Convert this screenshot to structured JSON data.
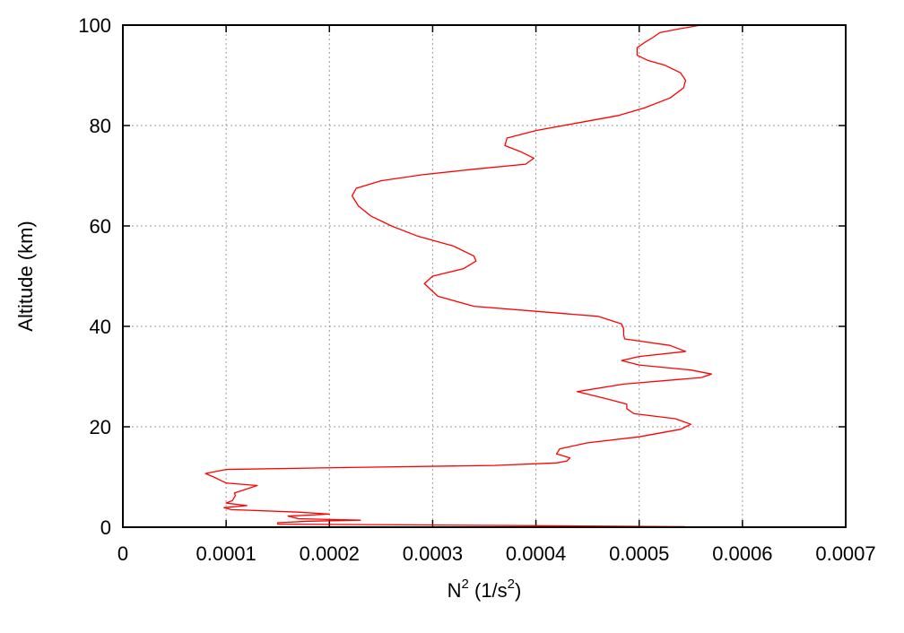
{
  "chart_data": {
    "type": "line",
    "xlabel_base": "N",
    "xlabel_exp": "2",
    "xlabel_mid": " (1/s",
    "xlabel_unit_exp": "2",
    "xlabel_end": ")",
    "ylabel": "Altitude (km)",
    "xlim": [
      0,
      0.0007
    ],
    "ylim": [
      0,
      100
    ],
    "x_ticks": [
      0,
      0.0001,
      0.0002,
      0.0003,
      0.0004,
      0.0005,
      0.0006,
      0.0007
    ],
    "x_tick_labels": [
      "0",
      "0.0001",
      "0.0002",
      "0.0003",
      "0.0004",
      "0.0005",
      "0.0006",
      "0.0007"
    ],
    "y_ticks": [
      0,
      20,
      40,
      60,
      80,
      100
    ],
    "y_tick_labels": [
      "0",
      "20",
      "40",
      "60",
      "80",
      "100"
    ],
    "grid": true,
    "series": [
      {
        "color": "#ff0000",
        "points": [
          [
            0.000545,
            0.1
          ],
          [
            0.0004,
            0.3
          ],
          [
            0.00015,
            0.6
          ],
          [
            0.00015,
            0.9
          ],
          [
            0.00018,
            1.2
          ],
          [
            0.00023,
            1.4
          ],
          [
            0.00017,
            1.7
          ],
          [
            0.00016,
            2.2
          ],
          [
            0.0002,
            2.6
          ],
          [
            0.00017,
            3.0
          ],
          [
            0.000105,
            3.5
          ],
          [
            9.8e-05,
            3.9
          ],
          [
            0.00012,
            4.3
          ],
          [
            0.0001,
            4.8
          ],
          [
            0.000106,
            5.3
          ],
          [
            0.000109,
            6.3
          ],
          [
            0.000108,
            6.8
          ],
          [
            0.00012,
            7.6
          ],
          [
            0.00013,
            8.3
          ],
          [
            0.0001,
            8.8
          ],
          [
            9.5e-05,
            9.3
          ],
          [
            8.8e-05,
            10.0
          ],
          [
            8e-05,
            10.7
          ],
          [
            0.0001,
            11.5
          ],
          [
            0.00022,
            11.9
          ],
          [
            0.00036,
            12.3
          ],
          [
            0.00042,
            12.8
          ],
          [
            0.00043,
            13.2
          ],
          [
            0.000433,
            13.8
          ],
          [
            0.00042,
            14.6
          ],
          [
            0.000423,
            15.6
          ],
          [
            0.00045,
            16.8
          ],
          [
            0.0005,
            18.0
          ],
          [
            0.00054,
            19.5
          ],
          [
            0.00055,
            20.5
          ],
          [
            0.000535,
            21.6
          ],
          [
            0.000495,
            22.6
          ],
          [
            0.000488,
            23.6
          ],
          [
            0.000488,
            24.5
          ],
          [
            0.00047,
            25.5
          ],
          [
            0.00044,
            27.0
          ],
          [
            0.000485,
            28.5
          ],
          [
            0.00056,
            29.8
          ],
          [
            0.00057,
            30.5
          ],
          [
            0.00055,
            31.3
          ],
          [
            0.0005,
            32.3
          ],
          [
            0.000483,
            33.2
          ],
          [
            0.0005,
            34.0
          ],
          [
            0.000545,
            35.0
          ],
          [
            0.00053,
            36.2
          ],
          [
            0.000486,
            37.5
          ],
          [
            0.000485,
            38.3
          ],
          [
            0.000485,
            39.5
          ],
          [
            0.000483,
            40.5
          ],
          [
            0.00046,
            42.0
          ],
          [
            0.0004,
            43.0
          ],
          [
            0.00034,
            44.0
          ],
          [
            0.000305,
            46.0
          ],
          [
            0.000292,
            48.5
          ],
          [
            0.0003,
            50.0
          ],
          [
            0.00033,
            51.5
          ],
          [
            0.000342,
            53.0
          ],
          [
            0.00034,
            54.0
          ],
          [
            0.00032,
            56.0
          ],
          [
            0.000285,
            58.0
          ],
          [
            0.00026,
            60.0
          ],
          [
            0.00024,
            62.0
          ],
          [
            0.000228,
            64.0
          ],
          [
            0.000222,
            66.0
          ],
          [
            0.000226,
            67.5
          ],
          [
            0.00025,
            69.0
          ],
          [
            0.00029,
            70.2
          ],
          [
            0.00034,
            71.3
          ],
          [
            0.00039,
            72.3
          ],
          [
            0.000398,
            73.5
          ],
          [
            0.000385,
            74.8
          ],
          [
            0.00037,
            76.0
          ],
          [
            0.000372,
            77.5
          ],
          [
            0.0004,
            79.0
          ],
          [
            0.00044,
            80.5
          ],
          [
            0.00048,
            82.0
          ],
          [
            0.000505,
            83.5
          ],
          [
            0.00053,
            85.5
          ],
          [
            0.000543,
            87.5
          ],
          [
            0.000545,
            89.0
          ],
          [
            0.00054,
            90.5
          ],
          [
            0.000525,
            92.0
          ],
          [
            0.000508,
            93.0
          ],
          [
            0.000498,
            94.0
          ],
          [
            0.000498,
            95.5
          ],
          [
            0.000505,
            96.5
          ],
          [
            0.000513,
            97.5
          ],
          [
            0.00052,
            98.5
          ],
          [
            0.00054,
            99.3
          ],
          [
            0.00056,
            100.0
          ]
        ]
      }
    ]
  }
}
